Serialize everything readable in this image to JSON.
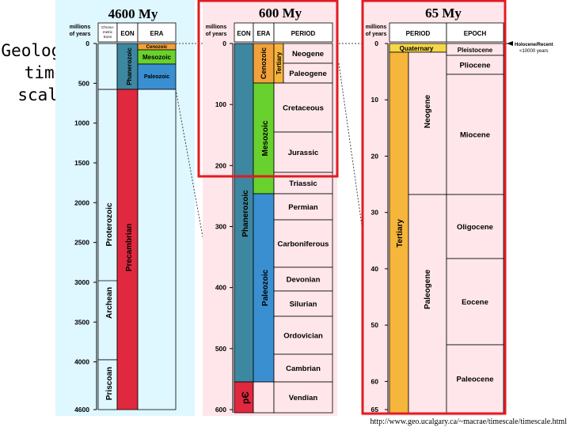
{
  "title": {
    "lines": [
      "Geologic",
      "time",
      "scale"
    ]
  },
  "header_labels": {
    "p1": "4600 My",
    "p2": "600 My",
    "p3": "65 My"
  },
  "colors": {
    "panel_bg": "#dff7ff",
    "panel2_bg": "#ffe6ea",
    "precambrian": "#e0283e",
    "priscoan": "#e0283e",
    "paleozoic": "#3a8fd1",
    "phanerozoic": "#3e87a0",
    "mesozoic": "#69d12e",
    "cenozoic": "#f2a13b",
    "tertiary_orange": "#f6b53b",
    "quaternary": "#f4d74a",
    "red_outline": "#e11b22"
  },
  "panel1": {
    "header": {
      "col1": "millions\nof years",
      "col2": "Chrono-\nmetric\nEons",
      "col3": "EON",
      "col4": "ERA"
    },
    "ticks": [
      "0",
      "500",
      "1000",
      "1500",
      "2000",
      "2500",
      "3000",
      "3500",
      "4000",
      "4600"
    ],
    "eons": {
      "phanerozoic": "Phanerozoic",
      "precambrian": "Precambrian"
    },
    "chrono": {
      "proterozoic": "Proterozoic",
      "archean": "Archean",
      "priscoan": "Priscoan"
    },
    "eras": {
      "cenozoic": "Cenozoic",
      "mesozoic": "Mesozoic",
      "paleozoic": "Paleozoic"
    }
  },
  "panel2": {
    "header": {
      "col1": "millions\nof years",
      "col2": "EON",
      "col3": "ERA",
      "col4": "PERIOD"
    },
    "ticks": [
      "0",
      "100",
      "200",
      "300",
      "400",
      "500",
      "600"
    ],
    "eon": "Phanerozoic",
    "pe": "pЄ",
    "eras": {
      "cenozoic": "Cenozoic",
      "mesozoic": "Mesozoic",
      "paleozoic": "Paleozoic"
    },
    "tertiary_label": "Tertiary",
    "periods": [
      "Neogene",
      "Paleogene",
      "Cretaceous",
      "Jurassic",
      "Triassic",
      "Permian",
      "Carboniferous",
      "Devonian",
      "Silurian",
      "Ordovician",
      "Cambrian",
      "Vendian"
    ]
  },
  "panel3": {
    "header": {
      "col1": "millions\nof years",
      "col2": "PERIOD",
      "col3": "EPOCH"
    },
    "ticks": [
      "0",
      "10",
      "20",
      "30",
      "40",
      "50",
      "60",
      "65"
    ],
    "period_top": "Quaternary",
    "tertiary_label": "Tertiary",
    "neogene": "Neogene",
    "paleogene": "Paleogene",
    "epochs": [
      "Pleistocene",
      "Pliocene",
      "Miocene",
      "Oligocene",
      "Eocene",
      "Paleocene"
    ],
    "holocene": {
      "line1": "Holocene/Recent",
      "line2": "<10000 years"
    }
  },
  "source": "http://www.geo.ucalgary.ca/~macrae/timescale/timescale.html"
}
